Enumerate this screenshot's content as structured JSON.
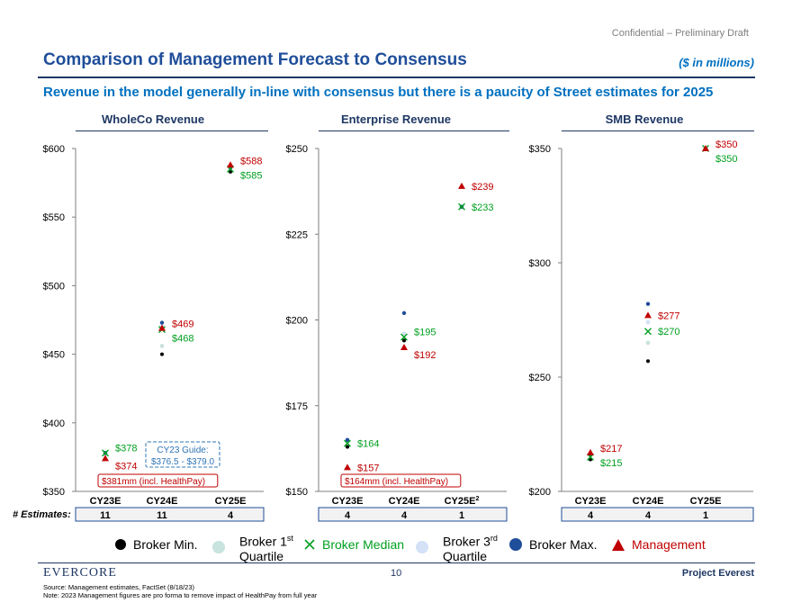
{
  "header": {
    "confidential": "Confidential – Preliminary Draft",
    "title": "Comparison of Management Forecast to Consensus",
    "units": "($ in millions)",
    "subtitle": "Revenue in the model generally in-line with consensus but there is a paucity of Street estimates for 2025"
  },
  "estimates_label": "# Estimates:",
  "chart_data": [
    {
      "type": "scatter",
      "title": "WholeCo Revenue",
      "categories": [
        "CY23E",
        "CY24E",
        "CY25E"
      ],
      "ylim": [
        350,
        600
      ],
      "ytick_values": [
        350,
        400,
        450,
        500,
        550,
        600
      ],
      "ytick_labels": [
        "$350",
        "$400",
        "$450",
        "$500",
        "$550",
        "$600"
      ],
      "series": [
        {
          "name": "Broker Min.",
          "values": [
            378,
            450,
            583
          ]
        },
        {
          "name": "Broker 1st Quartile",
          "values": [
            378,
            456,
            584
          ]
        },
        {
          "name": "Broker Median",
          "values": [
            378,
            468,
            585
          ]
        },
        {
          "name": "Broker 3rd Quartile",
          "values": [
            378,
            470,
            586
          ]
        },
        {
          "name": "Broker Max.",
          "values": [
            378,
            473,
            586
          ]
        },
        {
          "name": "Management",
          "values": [
            374,
            469,
            588
          ]
        }
      ],
      "median_labels": [
        "$378",
        "$468",
        "$585"
      ],
      "management_labels": [
        "$374",
        "$469",
        "$588"
      ],
      "estimates": [
        "11",
        "11",
        "4"
      ],
      "annotations": {
        "callout": "$381mm (incl. HealthPay)",
        "guide_line1": "CY23 Guide:",
        "guide_line2": "$376.5 - $379.0"
      }
    },
    {
      "type": "scatter",
      "title": "Enterprise Revenue",
      "categories": [
        "CY23E",
        "CY24E",
        "CY25E"
      ],
      "ylim": [
        150,
        250
      ],
      "ytick_values": [
        150,
        175,
        200,
        225,
        250
      ],
      "ytick_labels": [
        "$150",
        "$175",
        "$200",
        "$225",
        "$250"
      ],
      "series": [
        {
          "name": "Broker Min.",
          "values": [
            163,
            194,
            233
          ]
        },
        {
          "name": "Broker 1st Quartile",
          "values": [
            163,
            194,
            233
          ]
        },
        {
          "name": "Broker Median",
          "values": [
            164,
            195,
            233
          ]
        },
        {
          "name": "Broker 3rd Quartile",
          "values": [
            165,
            196,
            233
          ]
        },
        {
          "name": "Broker Max.",
          "values": [
            165,
            202,
            233
          ]
        },
        {
          "name": "Management",
          "values": [
            157,
            192,
            239
          ]
        }
      ],
      "median_labels": [
        "$164",
        "$195",
        "$233"
      ],
      "management_labels": [
        "$157",
        "$192",
        "$239"
      ],
      "estimates": [
        "4",
        "4",
        "1"
      ],
      "last_category_footnote": "2",
      "annotations": {
        "callout": "$164mm (incl. HealthPay)"
      }
    },
    {
      "type": "scatter",
      "title": "SMB Revenue",
      "categories": [
        "CY23E",
        "CY24E",
        "CY25E"
      ],
      "ylim": [
        200,
        350
      ],
      "ytick_values": [
        200,
        250,
        300,
        350
      ],
      "ytick_labels": [
        "$200",
        "$250",
        "$300",
        "$350"
      ],
      "series": [
        {
          "name": "Broker Min.",
          "values": [
            214,
            257,
            350
          ]
        },
        {
          "name": "Broker 1st Quartile",
          "values": [
            214,
            265,
            350
          ]
        },
        {
          "name": "Broker Median",
          "values": [
            215,
            270,
            350
          ]
        },
        {
          "name": "Broker 3rd Quartile",
          "values": [
            216,
            274,
            350
          ]
        },
        {
          "name": "Broker Max.",
          "values": [
            216,
            282,
            350
          ]
        },
        {
          "name": "Management",
          "values": [
            217,
            277,
            350
          ]
        }
      ],
      "median_labels": [
        "$215",
        "$270",
        "$350"
      ],
      "management_labels": [
        "$217",
        "$277",
        "$350"
      ],
      "estimates": [
        "4",
        "4",
        "1"
      ],
      "annotations": {}
    }
  ],
  "legend": {
    "broker_min": "Broker Min.",
    "q1_line1": "Broker 1",
    "q1_sup": "st",
    "q1_line2": "Quartile",
    "median": "Broker Median",
    "q3_line1": "Broker 3",
    "q3_sup": "rd",
    "q3_line2": "Quartile",
    "broker_max": "Broker Max.",
    "management": "Management"
  },
  "colors": {
    "min": "#000000",
    "q1": "#c9e3df",
    "median": "#00a020",
    "q3": "#d4e1f7",
    "max": "#1f4e9a",
    "management": "#c00000",
    "guide": "#2e75b6"
  },
  "footer": {
    "logo": "EVERCORE",
    "page_number": "10",
    "project": "Project Everest",
    "source": "Source: Management estimates, FactSet (8/18/23)",
    "note": "Note: 2023 Management figures are pro forma to remove impact of HealthPay from full year"
  }
}
